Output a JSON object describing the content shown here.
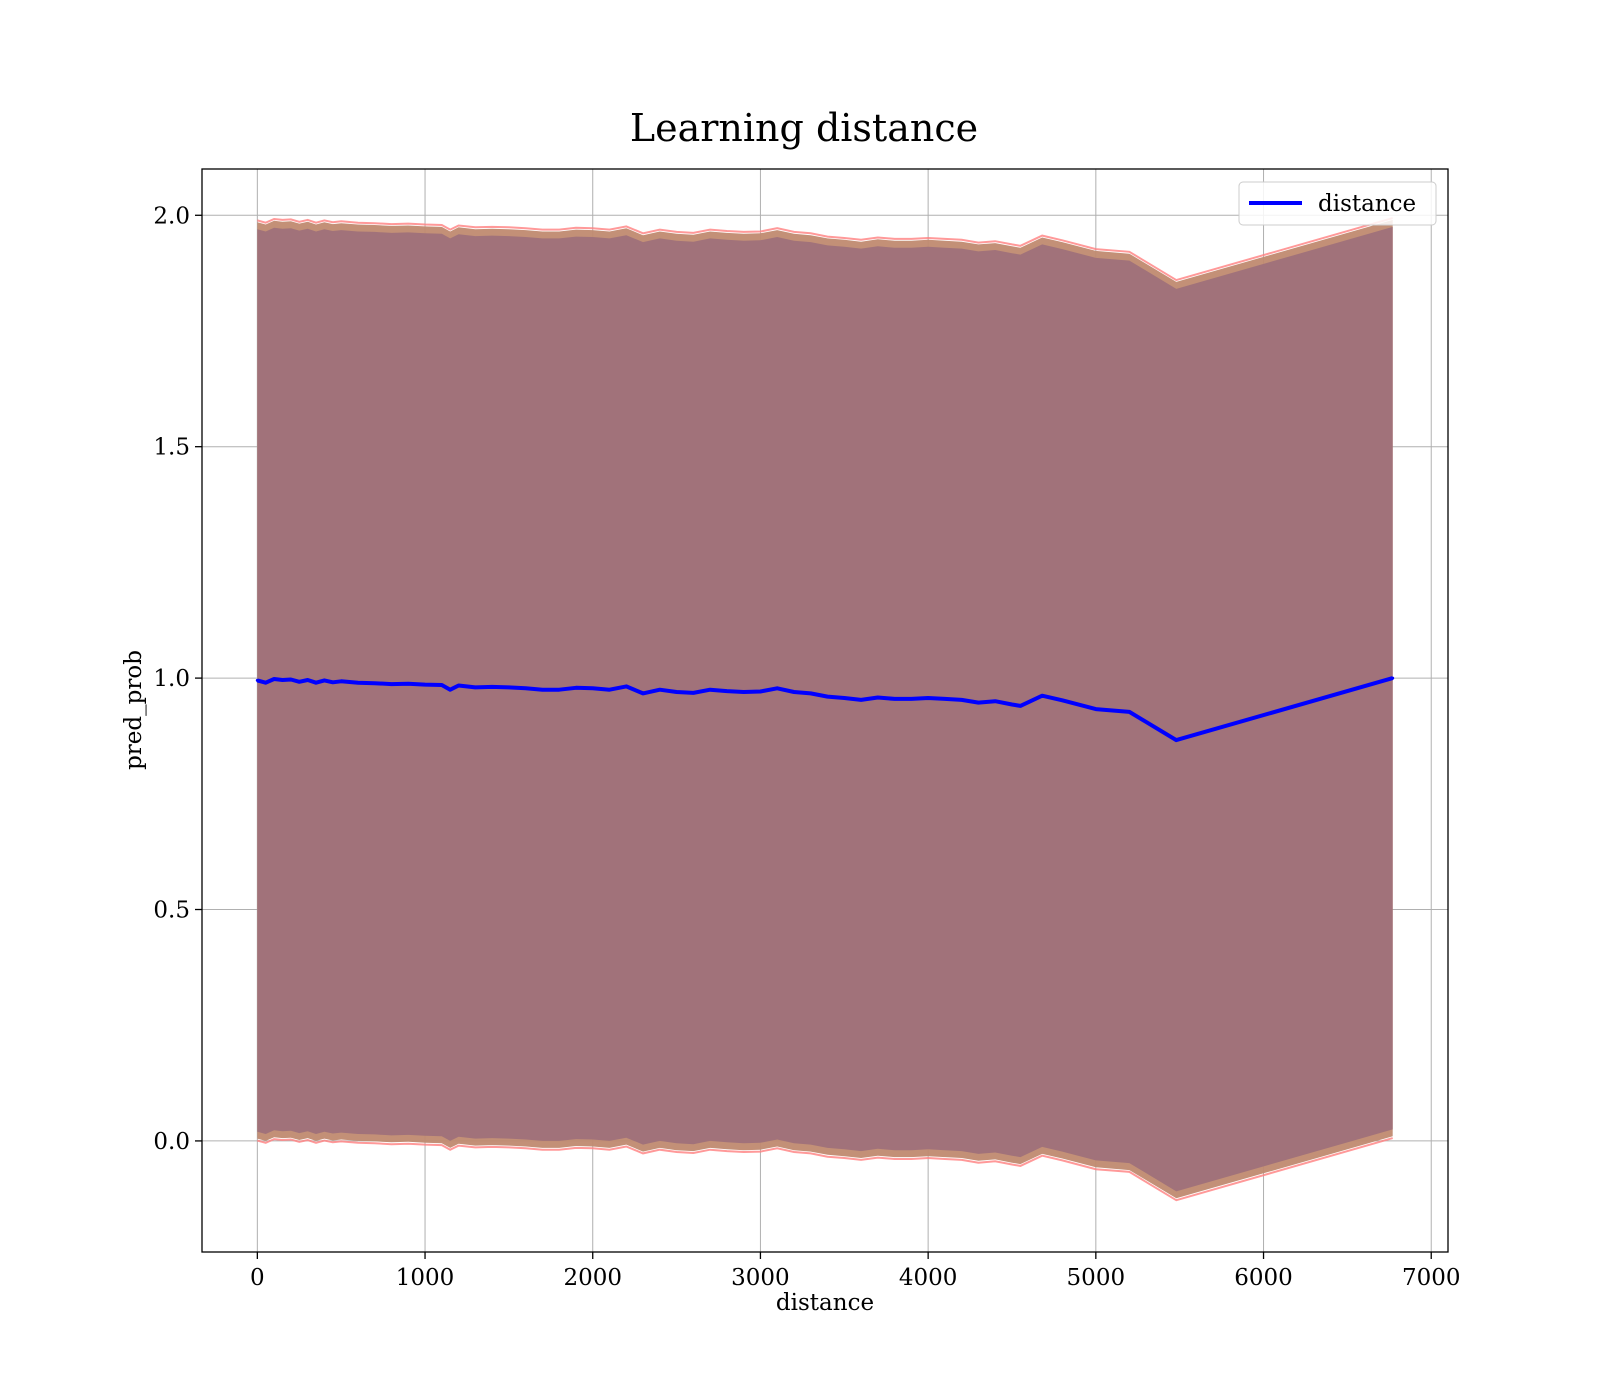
{
  "chart_data": {
    "type": "line",
    "title": "Learning distance",
    "xlabel": "distance",
    "ylabel": "pred_prob",
    "xlim": [
      -330,
      7100
    ],
    "ylim": [
      -0.24,
      2.1
    ],
    "xticks": [
      0,
      1000,
      2000,
      3000,
      4000,
      5000,
      6000,
      7000
    ],
    "yticks": [
      0.0,
      0.5,
      1.0,
      1.5,
      2.0
    ],
    "xtick_labels": [
      "0",
      "1000",
      "2000",
      "3000",
      "4000",
      "5000",
      "6000",
      "7000"
    ],
    "ytick_labels": [
      "0.0",
      "0.5",
      "1.0",
      "1.5",
      "2.0"
    ],
    "grid": true,
    "legend_position": "top-right",
    "series": [
      {
        "name": "distance",
        "color": "#0000ff",
        "x": [
          0,
          50,
          100,
          150,
          200,
          250,
          300,
          350,
          400,
          450,
          500,
          600,
          700,
          800,
          900,
          1000,
          1100,
          1150,
          1200,
          1300,
          1400,
          1500,
          1600,
          1700,
          1800,
          1900,
          2000,
          2100,
          2200,
          2300,
          2400,
          2500,
          2600,
          2700,
          2800,
          2900,
          3000,
          3100,
          3200,
          3300,
          3400,
          3500,
          3600,
          3700,
          3800,
          3900,
          4000,
          4100,
          4200,
          4300,
          4400,
          4500,
          4550,
          4680,
          4800,
          5000,
          5200,
          5480,
          6770
        ],
        "y": [
          0.995,
          0.99,
          0.998,
          0.996,
          0.997,
          0.992,
          0.996,
          0.99,
          0.995,
          0.991,
          0.993,
          0.99,
          0.989,
          0.987,
          0.988,
          0.986,
          0.985,
          0.975,
          0.984,
          0.98,
          0.981,
          0.98,
          0.978,
          0.975,
          0.975,
          0.979,
          0.978,
          0.975,
          0.982,
          0.967,
          0.975,
          0.97,
          0.968,
          0.975,
          0.972,
          0.97,
          0.971,
          0.978,
          0.97,
          0.967,
          0.96,
          0.957,
          0.953,
          0.958,
          0.955,
          0.955,
          0.957,
          0.955,
          0.953,
          0.947,
          0.95,
          0.943,
          0.94,
          0.962,
          0.952,
          0.933,
          0.927,
          0.866,
          1.0
        ]
      }
    ],
    "band_inner_offset": 0.975,
    "band_outer_offset": 0.99,
    "colors": {
      "band_inner": "#a1727a",
      "band_outer": "#c08a70",
      "band_edge": "#ff8080",
      "line": "#0000ff",
      "grid": "#b0b0b0"
    }
  }
}
